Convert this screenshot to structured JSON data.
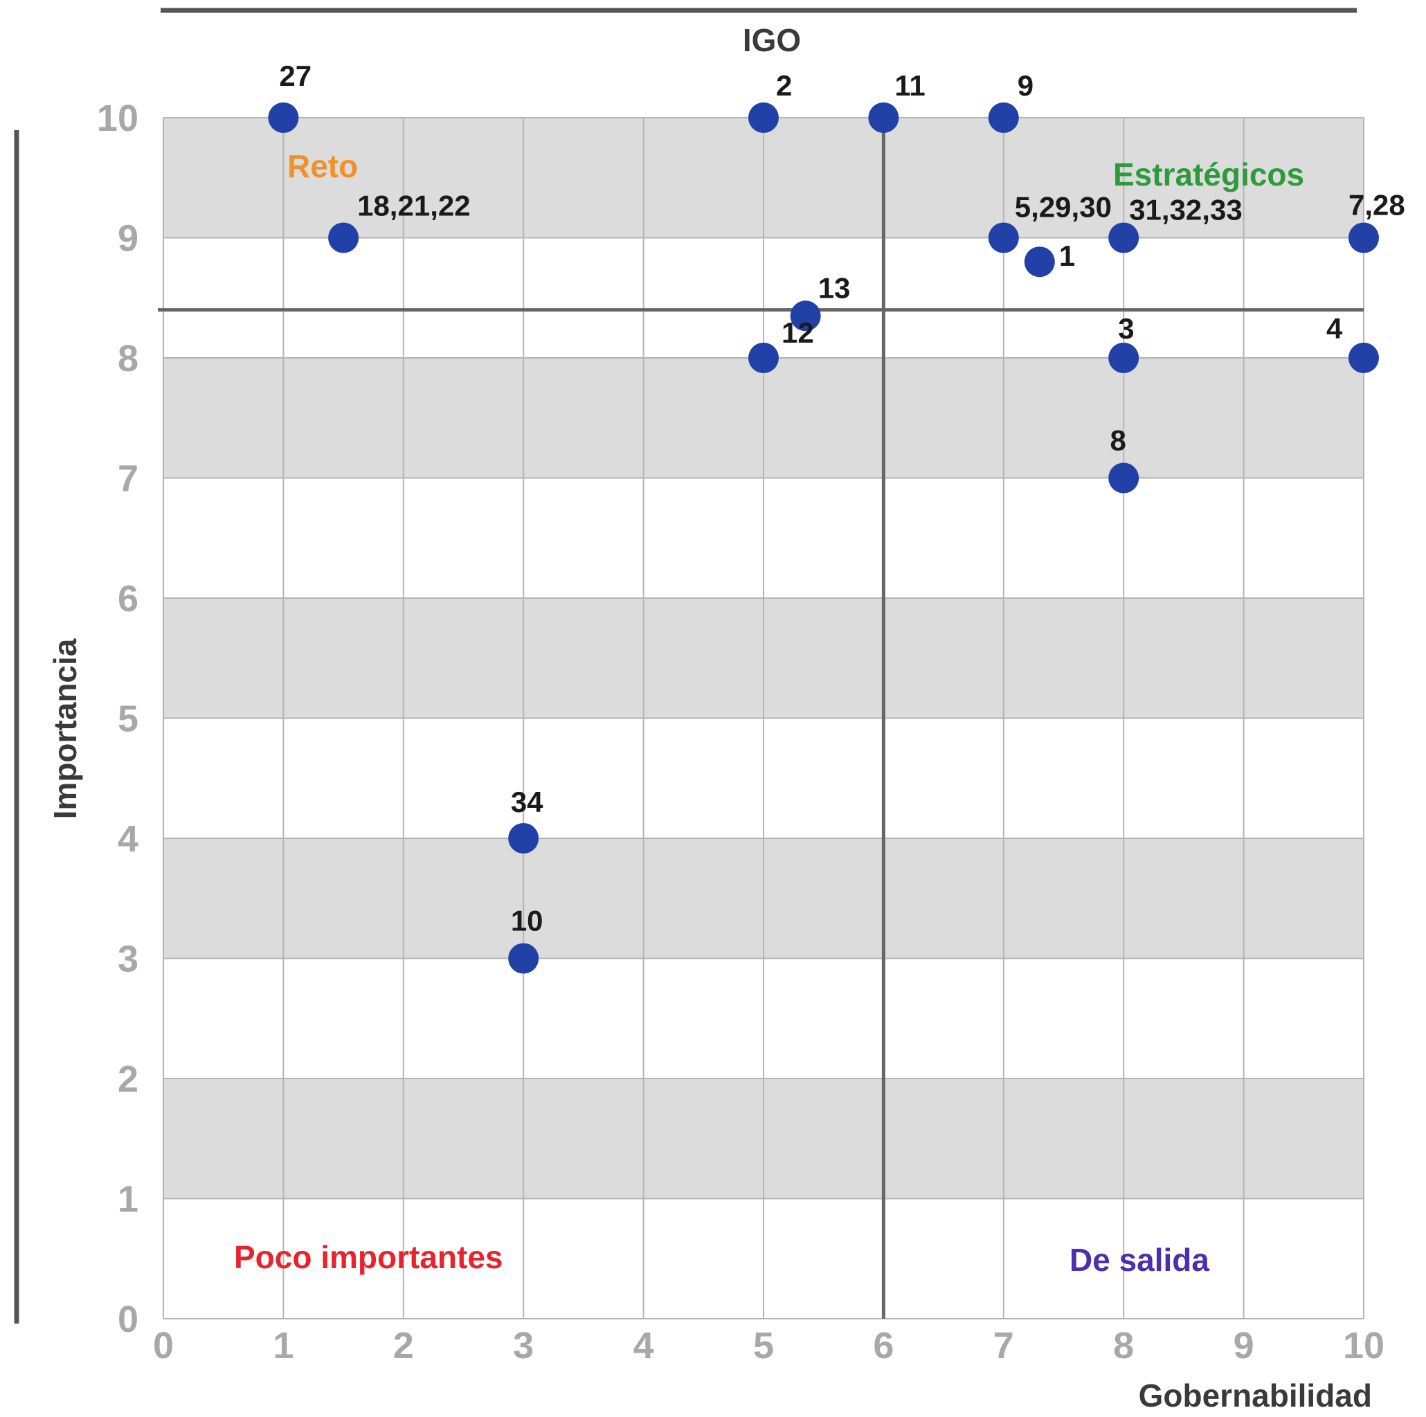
{
  "chart_data": {
    "type": "scatter",
    "title": "IGO",
    "xlabel": "Gobernabilidad",
    "ylabel": "Importancia",
    "xlim": [
      0,
      10
    ],
    "ylim": [
      0,
      10
    ],
    "x_ticks": [
      "0",
      "1",
      "2",
      "3",
      "4",
      "5",
      "6",
      "7",
      "8",
      "9",
      "10"
    ],
    "y_ticks": [
      "0",
      "1",
      "2",
      "3",
      "4",
      "5",
      "6",
      "7",
      "8",
      "9",
      "10"
    ],
    "grid": true,
    "shaded_bands": [
      [
        1,
        2
      ],
      [
        3,
        4
      ],
      [
        5,
        6
      ],
      [
        7,
        8
      ],
      [
        9,
        10
      ]
    ],
    "divider_x": 6,
    "divider_y": 8.4,
    "marker_color": "#2241a8",
    "band_color": "#dcdcdc",
    "points": [
      {
        "label": "27",
        "x": 1.0,
        "y": 10.0
      },
      {
        "label": "2",
        "x": 5.0,
        "y": 10.0
      },
      {
        "label": "11",
        "x": 6.0,
        "y": 10.0
      },
      {
        "label": "9",
        "x": 7.0,
        "y": 10.0
      },
      {
        "label": "18,21,22",
        "x": 1.5,
        "y": 9.0
      },
      {
        "label": "5,29,30",
        "x": 7.0,
        "y": 9.0
      },
      {
        "label": "1",
        "x": 7.3,
        "y": 8.8
      },
      {
        "label": "31,32,33",
        "x": 8.0,
        "y": 9.0
      },
      {
        "label": "7,28",
        "x": 10.0,
        "y": 9.0
      },
      {
        "label": "13",
        "x": 5.35,
        "y": 8.35
      },
      {
        "label": "12",
        "x": 5.0,
        "y": 8.0
      },
      {
        "label": "3",
        "x": 8.0,
        "y": 8.0
      },
      {
        "label": "4",
        "x": 10.0,
        "y": 8.0
      },
      {
        "label": "8",
        "x": 8.0,
        "y": 7.0
      },
      {
        "label": "34",
        "x": 3.0,
        "y": 4.0
      },
      {
        "label": "10",
        "x": 3.0,
        "y": 3.0
      }
    ],
    "quadrant_labels": [
      {
        "text": "Reto",
        "color": "#f0922b",
        "position": "top-left"
      },
      {
        "text": "Estratégicos",
        "color": "#2e9a3a",
        "position": "top-right"
      },
      {
        "text": "Poco importantes",
        "color": "#e8232c",
        "position": "bottom-left"
      },
      {
        "text": "De salida",
        "color": "#4b2fb0",
        "position": "bottom-right"
      }
    ]
  }
}
